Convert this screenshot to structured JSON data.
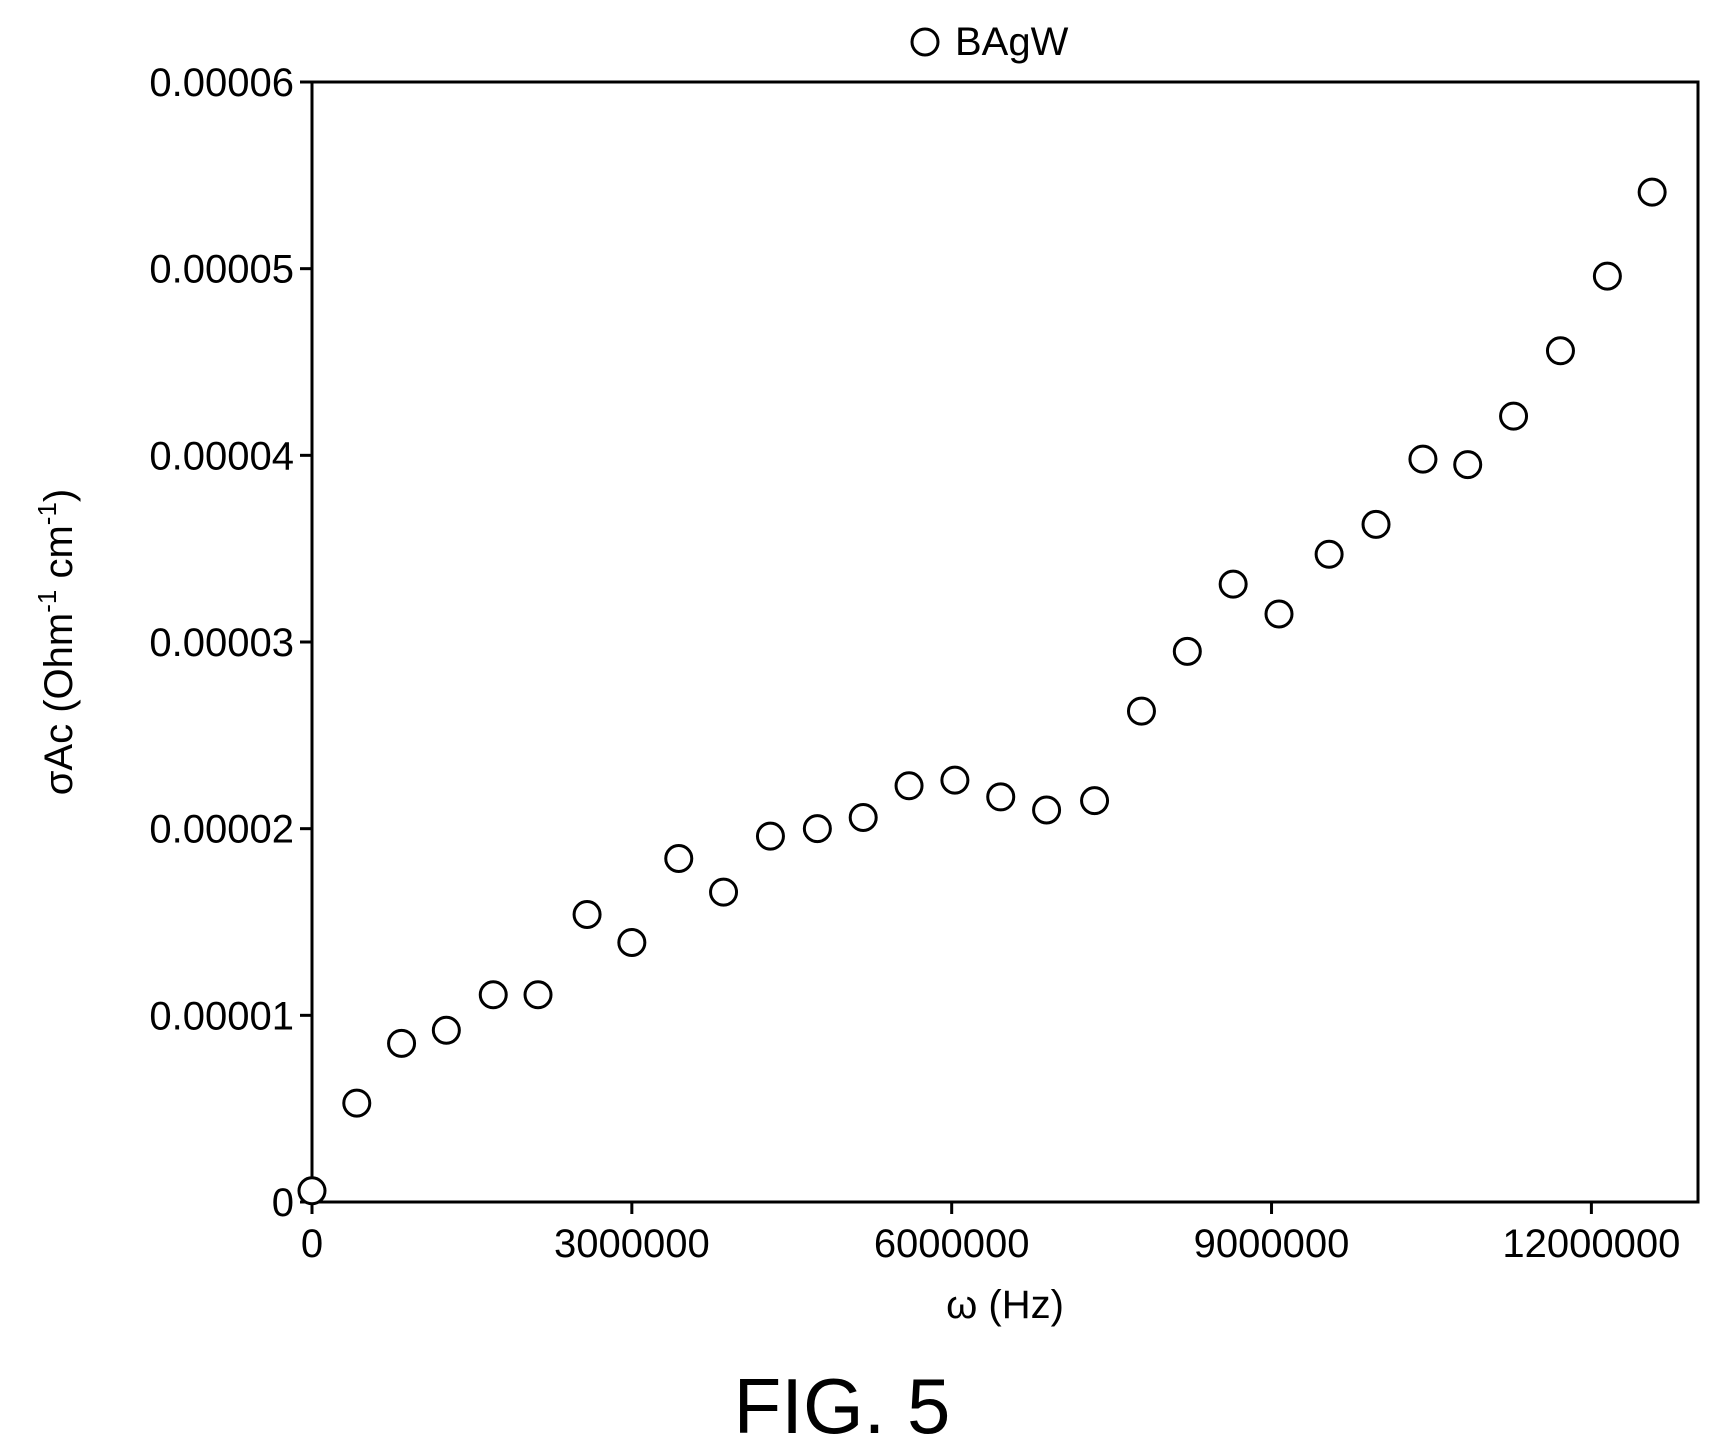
{
  "figure_caption": "FIG. 5",
  "chart_data": {
    "type": "scatter",
    "xlabel": "ω (Hz)",
    "ylabel": {
      "text": "σAc (Ohm",
      "sup1": "-1",
      "mid": " cm",
      "sup2": "-1",
      "end": ")"
    },
    "xlim": [
      0,
      13000000
    ],
    "ylim": [
      0,
      6e-05
    ],
    "x_ticks": [
      0,
      3000000,
      6000000,
      9000000,
      12000000
    ],
    "x_tick_labels": [
      "0",
      "3000000",
      "6000000",
      "9000000",
      "12000000"
    ],
    "y_ticks": [
      0,
      1e-05,
      2e-05,
      3e-05,
      4e-05,
      5e-05,
      6e-05
    ],
    "y_tick_labels": [
      "0",
      "0.00001",
      "0.00002",
      "0.00003",
      "0.00004",
      "0.00005",
      "0.00006"
    ],
    "legend": {
      "position": "top-center",
      "entries": [
        "BAgW"
      ]
    },
    "marker": "open-circle",
    "grid": false,
    "series": [
      {
        "name": "BAgW",
        "points": [
          [
            0,
            6e-07
          ],
          [
            420000,
            5.3e-06
          ],
          [
            840000,
            8.5e-06
          ],
          [
            1260000,
            9.2e-06
          ],
          [
            1700000,
            1.11e-05
          ],
          [
            2120000,
            1.11e-05
          ],
          [
            2580000,
            1.54e-05
          ],
          [
            3000000,
            1.39e-05
          ],
          [
            3440000,
            1.84e-05
          ],
          [
            3860000,
            1.66e-05
          ],
          [
            4300000,
            1.96e-05
          ],
          [
            4740000,
            2e-05
          ],
          [
            5170000,
            2.06e-05
          ],
          [
            5600000,
            2.23e-05
          ],
          [
            6030000,
            2.26e-05
          ],
          [
            6460000,
            2.17e-05
          ],
          [
            6890000,
            2.1e-05
          ],
          [
            7340000,
            2.15e-05
          ],
          [
            7780000,
            2.63e-05
          ],
          [
            8210000,
            2.95e-05
          ],
          [
            8640000,
            3.31e-05
          ],
          [
            9070000,
            3.15e-05
          ],
          [
            9540000,
            3.47e-05
          ],
          [
            9980000,
            3.63e-05
          ],
          [
            10420000,
            3.98e-05
          ],
          [
            10840000,
            3.95e-05
          ],
          [
            11270000,
            4.21e-05
          ],
          [
            11710000,
            4.56e-05
          ],
          [
            12150000,
            4.96e-05
          ],
          [
            12570000,
            5.41e-05
          ]
        ]
      }
    ]
  }
}
